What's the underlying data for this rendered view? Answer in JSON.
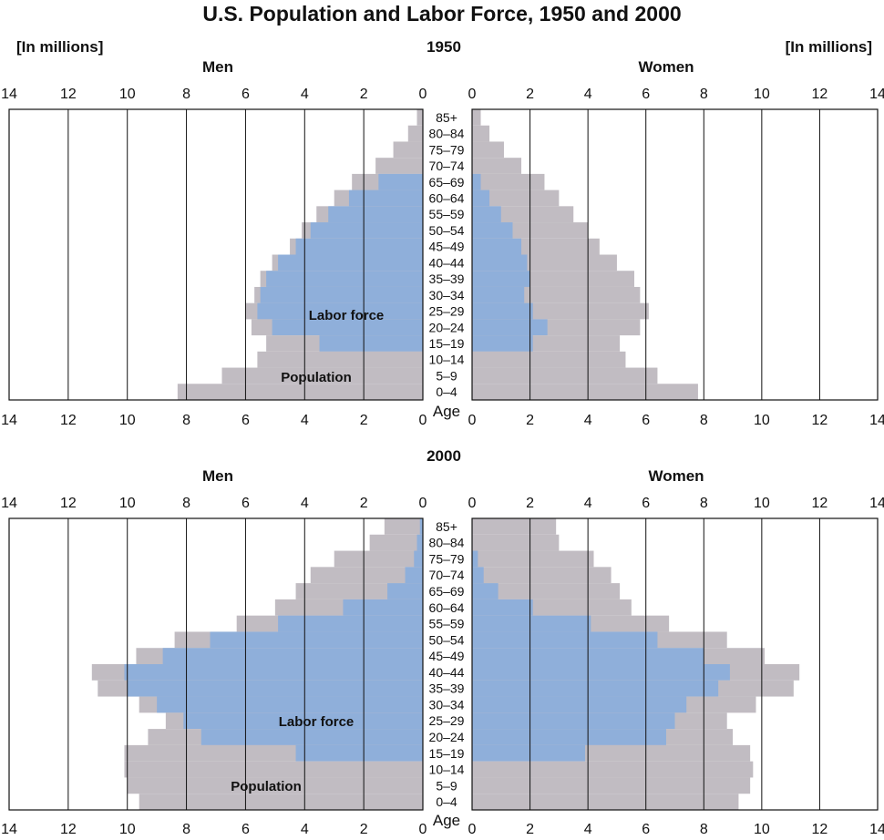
{
  "title": "U.S. Population and Labor Force, 1950 and 2000",
  "units_left": "[In millions]",
  "units_right": "[In millions]",
  "men_label": "Men",
  "women_label": "Women",
  "age_label": "Age",
  "labor_force_label": "Labor force",
  "population_label": "Population",
  "colors": {
    "population": "#c1bcc2",
    "labor_force": "#8fafda",
    "grid": "#111111"
  },
  "chart_data": {
    "type": "bar",
    "subtype": "population-pyramid",
    "title": "U.S. Population and Labor Force, 1950 and 2000",
    "x_range": [
      0,
      14
    ],
    "x_ticks": [
      0,
      2,
      4,
      6,
      8,
      10,
      12,
      14
    ],
    "age_groups": [
      "85+",
      "80–84",
      "75–79",
      "70–74",
      "65–69",
      "60–64",
      "55–59",
      "50–54",
      "45–49",
      "40–44",
      "35–39",
      "30–34",
      "25–29",
      "20–24",
      "15–19",
      "10–14",
      "5–9",
      "0–4"
    ],
    "panels": [
      {
        "year": "1950",
        "men_population": [
          0.2,
          0.5,
          1.0,
          1.6,
          2.4,
          3.0,
          3.6,
          4.1,
          4.5,
          5.1,
          5.5,
          5.7,
          6.0,
          5.8,
          5.3,
          5.6,
          6.8,
          8.3
        ],
        "men_labor_force": [
          0.0,
          0.0,
          0.0,
          0.0,
          1.5,
          2.5,
          3.2,
          3.8,
          4.3,
          4.9,
          5.3,
          5.5,
          5.6,
          5.1,
          3.5,
          0.0,
          0.0,
          0.0
        ],
        "women_population": [
          0.3,
          0.6,
          1.1,
          1.7,
          2.5,
          3.0,
          3.5,
          4.0,
          4.4,
          5.0,
          5.6,
          5.8,
          6.1,
          5.8,
          5.1,
          5.3,
          6.4,
          7.8
        ],
        "women_labor_force": [
          0.0,
          0.0,
          0.0,
          0.0,
          0.3,
          0.6,
          1.0,
          1.4,
          1.7,
          1.9,
          2.0,
          1.8,
          2.1,
          2.6,
          2.1,
          0.0,
          0.0,
          0.0
        ]
      },
      {
        "year": "2000",
        "men_population": [
          1.3,
          1.8,
          3.0,
          3.8,
          4.3,
          5.0,
          6.3,
          8.4,
          9.7,
          11.2,
          11.0,
          9.6,
          8.7,
          9.3,
          10.1,
          10.1,
          10.0,
          9.6
        ],
        "men_labor_force": [
          0.1,
          0.2,
          0.3,
          0.6,
          1.2,
          2.7,
          4.9,
          7.2,
          8.8,
          10.1,
          10.0,
          9.0,
          8.1,
          7.5,
          4.3,
          0.0,
          0.0,
          0.0
        ],
        "women_population": [
          2.9,
          3.0,
          4.2,
          4.8,
          5.1,
          5.5,
          6.8,
          8.8,
          10.1,
          11.3,
          11.1,
          9.8,
          8.8,
          9.0,
          9.6,
          9.7,
          9.6,
          9.2
        ],
        "women_labor_force": [
          0.0,
          0.0,
          0.2,
          0.4,
          0.9,
          2.1,
          4.1,
          6.4,
          8.0,
          8.9,
          8.5,
          7.4,
          7.0,
          6.7,
          3.9,
          0.0,
          0.0,
          0.0
        ]
      }
    ]
  }
}
